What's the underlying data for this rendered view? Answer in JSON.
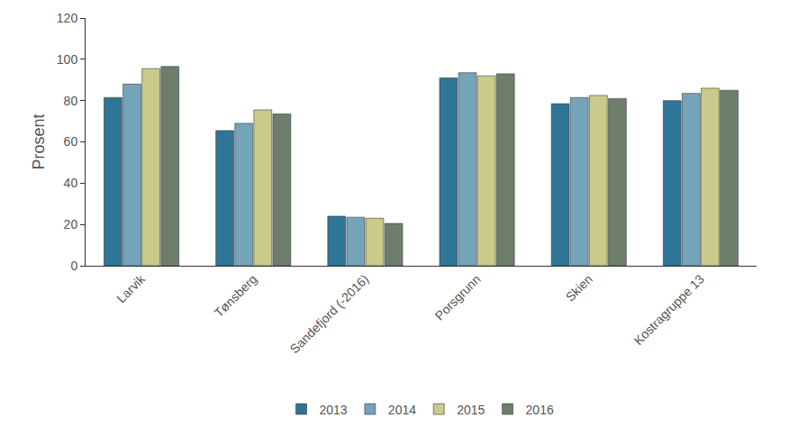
{
  "chart_data": {
    "type": "bar",
    "y_label": "Prosent",
    "categories": [
      "Larvik",
      "Tønsberg",
      "Sandefjord (-2016)",
      "Porsgrunn",
      "Skien",
      "Kostragruppe 13"
    ],
    "series": [
      {
        "name": "2013",
        "color": "#2e7597",
        "values": [
          81.5,
          65.5,
          24,
          91,
          78.5,
          80
        ]
      },
      {
        "name": "2014",
        "color": "#74a4b9",
        "values": [
          88,
          69,
          23.5,
          93.5,
          81.5,
          83.5
        ]
      },
      {
        "name": "2015",
        "color": "#c9cb8b",
        "values": [
          95.5,
          75.5,
          23,
          92,
          82.5,
          86
        ]
      },
      {
        "name": "2016",
        "color": "#6d7e6d",
        "values": [
          96.5,
          73.5,
          20.5,
          93,
          81,
          85
        ]
      }
    ],
    "ylim": [
      0,
      120
    ],
    "yticks": [
      0,
      20,
      40,
      60,
      80,
      100,
      120
    ],
    "grid": false,
    "legend": "bottom"
  }
}
